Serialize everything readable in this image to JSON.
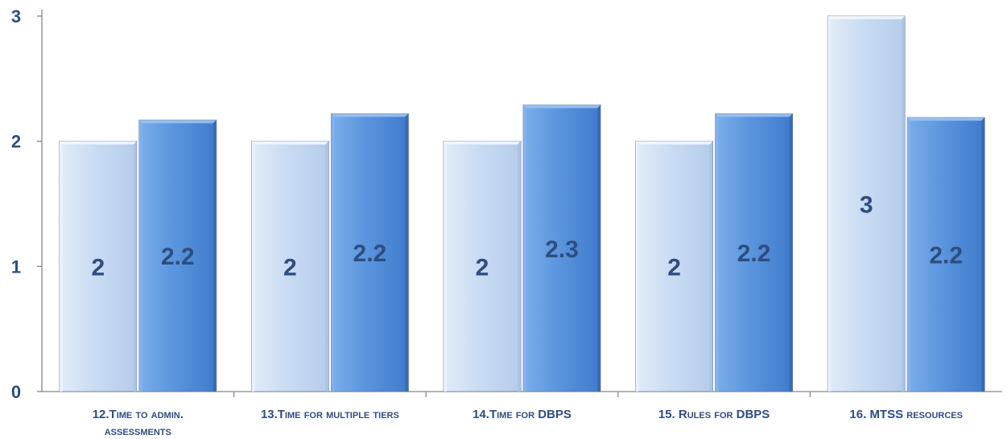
{
  "chart_data": {
    "type": "bar",
    "categories": [
      [
        "12.Time to admin.",
        "assessments"
      ],
      [
        "13.Time for multiple tiers"
      ],
      [
        "14.Time for DBPS"
      ],
      [
        "15. Rules for DBPS"
      ],
      [
        "16. MTSS resources"
      ]
    ],
    "series": [
      {
        "values": [
          2,
          2,
          2,
          2,
          3
        ],
        "labels": [
          "2",
          "2",
          "2",
          "2",
          "3"
        ],
        "color": "#C5D9F1"
      },
      {
        "values": [
          2.17,
          2.22,
          2.29,
          2.22,
          2.19
        ],
        "labels": [
          "2.2",
          "2.2",
          "2.3",
          "2.2",
          "2.2"
        ],
        "color": "#5B95DE"
      }
    ],
    "ylim": [
      0,
      3
    ],
    "yticks": [
      0,
      1,
      2,
      3
    ],
    "ytick_labels": [
      "0",
      "1",
      "2",
      "3"
    ],
    "grid": false,
    "title": "",
    "xlabel": "",
    "ylabel": "",
    "label_color": "#2E4E7E"
  }
}
